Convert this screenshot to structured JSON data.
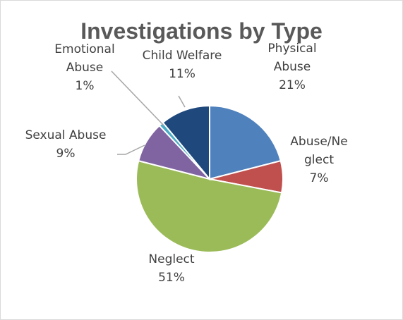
{
  "chart_data": {
    "type": "pie",
    "title": "Investigations by Type",
    "slices": [
      {
        "label": [
          "Physical",
          "Abuse"
        ],
        "value": 21,
        "pct_label": "21%",
        "color": "#4f81bd"
      },
      {
        "label": [
          "Abuse/Ne",
          "glect"
        ],
        "value": 7,
        "pct_label": "7%",
        "color": "#c0504d"
      },
      {
        "label": [
          "Neglect"
        ],
        "value": 51,
        "pct_label": "51%",
        "color": "#9bbb59"
      },
      {
        "label": [
          "Sexual Abuse"
        ],
        "value": 9,
        "pct_label": "9%",
        "color": "#8064a2"
      },
      {
        "label": [
          "Emotional",
          "Abuse"
        ],
        "value": 1,
        "pct_label": "1%",
        "color": "#4bacc6"
      },
      {
        "label": [
          "Child Welfare"
        ],
        "value": 11,
        "pct_label": "11%",
        "color": "#1f497d"
      }
    ],
    "legend": "none"
  }
}
